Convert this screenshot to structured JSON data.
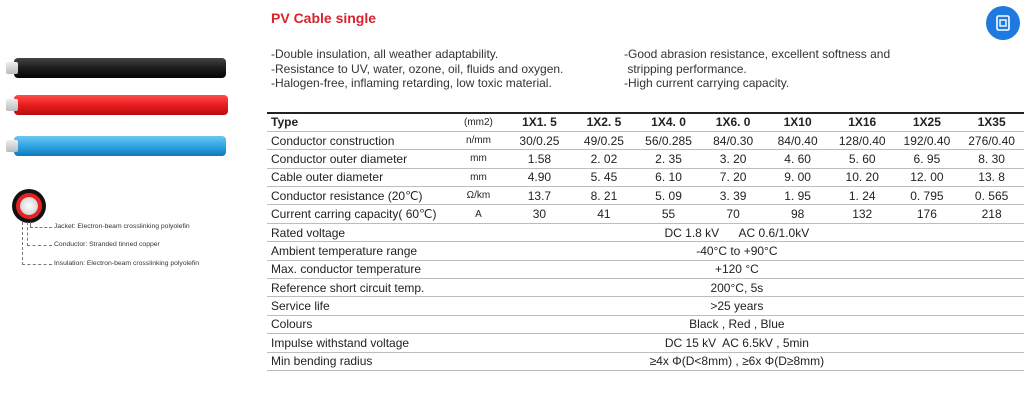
{
  "title": "PV Cable single",
  "features_left": [
    "-Double insulation, all weather adaptability.",
    "-Resistance to UV, water, ozone, oil, fluids and oxygen.",
    "-Halogen-free, inflaming retarding, low toxic material."
  ],
  "features_right": [
    "-Good abrasion resistance, excellent softness and",
    " stripping performance.",
    "-High current carrying capacity."
  ],
  "cables": [
    "black",
    "red",
    "blue"
  ],
  "annotations": {
    "jacket": "Jacket: Electron-beam crosslinking polyolefin",
    "conductor": "Conductor: Stranded tinned copper",
    "insulation": "Insulation: Electron-beam crosslinking polyolefin"
  },
  "icons": {
    "corner": "document-scan-icon"
  },
  "colors": {
    "title": "#d9232d",
    "button": "#1f7ae0"
  },
  "table": {
    "header": {
      "label": "Type",
      "unit": "(mm2)",
      "values": [
        "1X1. 5",
        "1X2. 5",
        "1X4. 0",
        "1X6. 0",
        "1X10",
        "1X16",
        "1X25",
        "1X35"
      ]
    },
    "rows": [
      {
        "label": "Conductor construction",
        "unit": "n/mm",
        "values": [
          "30/0.25",
          "49/0.25",
          "56/0.285",
          "84/0.30",
          "84/0.40",
          "128/0.40",
          "192/0.40",
          "276/0.40"
        ]
      },
      {
        "label": "Conductor outer diameter",
        "unit": "mm",
        "values": [
          "1.58",
          "2. 02",
          "2. 35",
          "3. 20",
          "4. 60",
          "5. 60",
          "6. 95",
          "8. 30"
        ]
      },
      {
        "label": "Cable outer diameter",
        "unit": "mm",
        "values": [
          "4.90",
          "5. 45",
          "6. 10",
          "7. 20",
          "9. 00",
          "10. 20",
          "12. 00",
          "13. 8"
        ]
      },
      {
        "label": "Conductor resistance (20℃)",
        "unit": "Ω/km",
        "values": [
          "13.7",
          "8. 21",
          "5. 09",
          "3. 39",
          "1. 95",
          "1. 24",
          "0. 795",
          "0. 565"
        ]
      },
      {
        "label": "Current carring capacity( 60℃)",
        "unit": "A",
        "values": [
          "30",
          "41",
          "55",
          "70",
          "98",
          "132",
          "176",
          "218"
        ]
      }
    ],
    "span_rows": [
      {
        "label": "Rated  voltage",
        "value": "DC 1.8 kV      AC 0.6/1.0kV"
      },
      {
        "label": "Ambient temperature range",
        "value": "-40°C to +90°C"
      },
      {
        "label": "Max. conductor temperature",
        "value": "+120 °C"
      },
      {
        "label": "Reference short circuit temp.",
        "value": "200°C, 5s"
      },
      {
        "label": "Service life",
        "value": ">25 years"
      },
      {
        "label": "Colours",
        "value": "Black , Red , Blue"
      },
      {
        "label": "Impulse withstand voltage",
        "value": "DC 15 kV  AC 6.5kV , 5min"
      },
      {
        "label": "Min bending radius",
        "value": "≥4x Φ(D<8mm) , ≥6x Φ(D≥8mm)"
      }
    ]
  }
}
